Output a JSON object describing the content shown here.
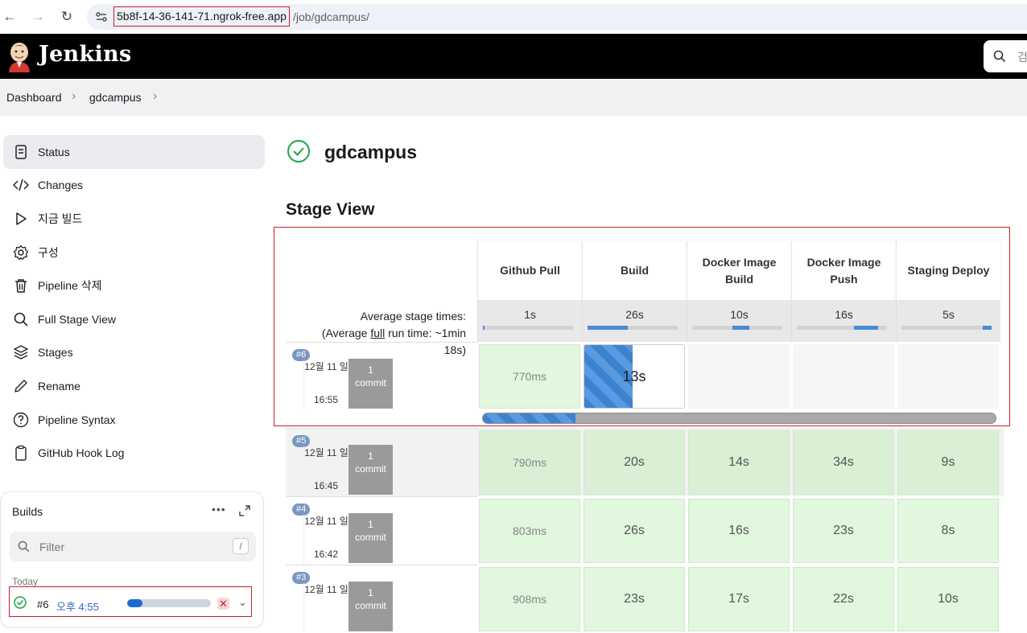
{
  "browser": {
    "url_host": "5b8f-14-36-141-71.ngrok-free.app",
    "url_path": "/job/gdcampus/"
  },
  "header": {
    "brand": "Jenkins",
    "search_placeholder": "검"
  },
  "breadcrumb": {
    "items": [
      "Dashboard",
      "gdcampus"
    ]
  },
  "sidebar": {
    "items": [
      {
        "label": "Status",
        "icon": "status-icon"
      },
      {
        "label": "Changes",
        "icon": "code-icon"
      },
      {
        "label": "지금 빌드",
        "icon": "play-icon"
      },
      {
        "label": "구성",
        "icon": "gear-icon"
      },
      {
        "label": "Pipeline 삭제",
        "icon": "trash-icon"
      },
      {
        "label": "Full Stage View",
        "icon": "search-icon"
      },
      {
        "label": "Stages",
        "icon": "layers-icon"
      },
      {
        "label": "Rename",
        "icon": "pencil-icon"
      },
      {
        "label": "Pipeline Syntax",
        "icon": "help-icon"
      },
      {
        "label": "GitHub Hook Log",
        "icon": "clipboard-icon"
      }
    ]
  },
  "builds": {
    "title": "Builds",
    "more": "•••",
    "filter_placeholder": "Filter",
    "filter_shortcut": "/",
    "group": "Today",
    "row": {
      "number": "#6",
      "time": "오후 4:55",
      "progress": 0.18,
      "stop": "✕",
      "chevron": "⌄"
    }
  },
  "main": {
    "title": "gdcampus",
    "stage_view_heading": "Stage View"
  },
  "stage_view": {
    "avg_label_1": "Average stage times:",
    "avg_label_2a": "(Average ",
    "avg_label_2_link": "full",
    "avg_label_2b": " run time: ~1min",
    "avg_label_3": "18s)",
    "stages": [
      {
        "name": "Github Pull",
        "avg": "1s",
        "bar_start": 0.0,
        "bar_fill": 0.02
      },
      {
        "name": "Build",
        "avg": "26s",
        "bar_start": 0.0,
        "bar_fill": 0.45
      },
      {
        "name": "Docker Image Build",
        "avg": "10s",
        "bar_start": 0.45,
        "bar_fill": 0.18
      },
      {
        "name": "Docker Image Push",
        "avg": "16s",
        "bar_start": 0.63,
        "bar_fill": 0.27
      },
      {
        "name": "Staging Deploy",
        "avg": "5s",
        "bar_start": 0.9,
        "bar_fill": 0.1
      }
    ],
    "runs": [
      {
        "badge": "#6",
        "date": "12월 11 일",
        "time": "16:55",
        "commit_count": "1",
        "commit_label": "commit",
        "cells": [
          "770ms",
          "13s",
          "",
          "",
          ""
        ],
        "running_index": 1,
        "running_progress": 0.48,
        "overall_progress": 0.18
      },
      {
        "badge": "#5",
        "date": "12월 11 일",
        "time": "16:45",
        "commit_count": "1",
        "commit_label": "commit",
        "cells": [
          "790ms",
          "20s",
          "14s",
          "34s",
          "9s"
        ]
      },
      {
        "badge": "#4",
        "date": "12월 11 일",
        "time": "16:42",
        "commit_count": "1",
        "commit_label": "commit",
        "cells": [
          "803ms",
          "26s",
          "16s",
          "23s",
          "8s"
        ]
      },
      {
        "badge": "#3",
        "date": "12월 11 일",
        "time": "",
        "commit_count": "1",
        "commit_label": "commit",
        "cells": [
          "908ms",
          "23s",
          "17s",
          "22s",
          "10s"
        ]
      }
    ]
  }
}
